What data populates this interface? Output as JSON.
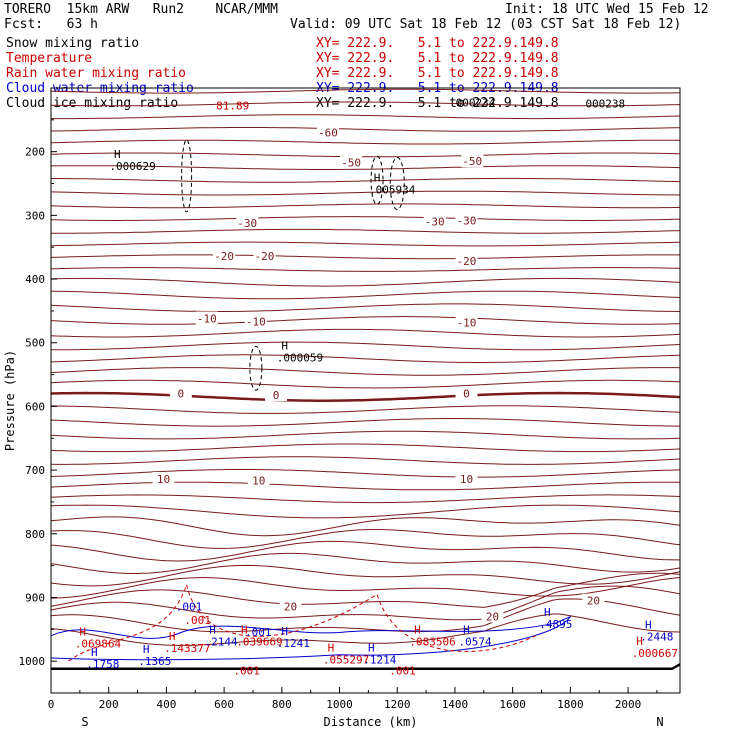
{
  "header": {
    "title_line": "TORERO  15km ARW   Run2    NCAR/MMM",
    "init": "Init: 18 UTC Wed 15 Feb 12",
    "fcst": "Fcst:   63 h",
    "valid": "Valid: 09 UTC Sat 18 Feb 12 (03 CST Sat 18 Feb 12)",
    "fields": [
      {
        "name": "Snow mixing ratio",
        "xy": "XY= 222.9.   5.1 to 222.9.149.8",
        "color": "#000000"
      },
      {
        "name": "Temperature",
        "xy": "XY= 222.9.   5.1 to 222.9.149.8",
        "color": "#cc0000"
      },
      {
        "name": "Rain water mixing ratio",
        "xy": "XY= 222.9.   5.1 to 222.9.149.8",
        "color": "#cc0000"
      },
      {
        "name": "Cloud water mixing ratio",
        "xy": "XY= 222.9.   5.1 to 222.9.149.8",
        "color": "#0000cc"
      },
      {
        "name": "Cloud ice mixing ratio",
        "xy": "XY= 222.9.   5.1 to 222.9.149.8",
        "color": "#000000"
      }
    ]
  },
  "chart_data": {
    "type": "cross-section contour",
    "xlabel": "Distance (km)",
    "ylabel": "Pressure (hPa)",
    "x_ticks": [
      0,
      200,
      400,
      600,
      800,
      1000,
      1200,
      1400,
      1600,
      1800,
      2000
    ],
    "y_ticks": [
      200,
      300,
      400,
      500,
      600,
      700,
      800,
      900,
      1000
    ],
    "xlim": [
      0,
      2180
    ],
    "ylim": [
      1050,
      100
    ],
    "left_end_label": "S",
    "right_end_label": "N",
    "temperature_isotherms": [
      {
        "value": -60,
        "labels": [
          {
            "x": 960,
            "p": 170,
            "text": "-60"
          }
        ]
      },
      {
        "value": -50,
        "labels": [
          {
            "x": 1040,
            "p": 217,
            "text": "-50"
          },
          {
            "x": 1460,
            "p": 215,
            "text": "-50"
          }
        ]
      },
      {
        "value": -30,
        "labels": [
          {
            "x": 680,
            "p": 312,
            "text": "-30"
          },
          {
            "x": 1330,
            "p": 310,
            "text": "-30"
          },
          {
            "x": 1440,
            "p": 308,
            "text": "-30"
          }
        ]
      },
      {
        "value": -20,
        "labels": [
          {
            "x": 600,
            "p": 364,
            "text": "-20"
          },
          {
            "x": 740,
            "p": 364,
            "text": "-20"
          },
          {
            "x": 1440,
            "p": 372,
            "text": "-20"
          }
        ]
      },
      {
        "value": -10,
        "labels": [
          {
            "x": 540,
            "p": 462,
            "text": "-10"
          },
          {
            "x": 710,
            "p": 467,
            "text": "-10"
          },
          {
            "x": 1440,
            "p": 468,
            "text": "-10"
          }
        ]
      },
      {
        "value": 0,
        "labels": [
          {
            "x": 450,
            "p": 580,
            "text": "0"
          },
          {
            "x": 780,
            "p": 582,
            "text": "0"
          },
          {
            "x": 1440,
            "p": 580,
            "text": "0"
          }
        ]
      },
      {
        "value": 10,
        "labels": [
          {
            "x": 390,
            "p": 714,
            "text": "10"
          },
          {
            "x": 720,
            "p": 716,
            "text": "10"
          },
          {
            "x": 1440,
            "p": 714,
            "text": "10"
          }
        ]
      },
      {
        "value": 20,
        "labels": [
          {
            "x": 830,
            "p": 914,
            "text": "20"
          },
          {
            "x": 1530,
            "p": 930,
            "text": "20"
          },
          {
            "x": 1880,
            "p": 905,
            "text": "20"
          }
        ]
      }
    ],
    "maxima": [
      {
        "x": 230,
        "p": 213,
        "mark": "H",
        "value": ".000629",
        "color": "#000000"
      },
      {
        "x": 1130,
        "p": 250,
        "mark": "H",
        "value": ".005934",
        "color": "#000000"
      },
      {
        "x": 810,
        "p": 514,
        "mark": "H",
        "value": ".000059",
        "color": "#000000"
      },
      {
        "x": 600,
        "p": 118,
        "mark": "",
        "value": "81.89",
        "color": "#cc0000"
      },
      {
        "x": 1430,
        "p": 113,
        "mark": "",
        "value": "000234",
        "color": "#000000"
      },
      {
        "x": 1880,
        "p": 115,
        "mark": "",
        "value": "000238",
        "color": "#000000"
      },
      {
        "x": 460,
        "p": 905,
        "mark": "",
        "value": ".001",
        "color": "#0000cc"
      },
      {
        "x": 490,
        "p": 926,
        "mark": "",
        "value": ".001",
        "color": "#cc0000"
      },
      {
        "x": 110,
        "p": 963,
        "mark": "H",
        "value": ".069864",
        "color": "#cc0000"
      },
      {
        "x": 150,
        "p": 995,
        "mark": "H",
        "value": ".1758",
        "color": "#0000cc"
      },
      {
        "x": 330,
        "p": 990,
        "mark": "H",
        "value": ".1365",
        "color": "#0000cc"
      },
      {
        "x": 420,
        "p": 970,
        "mark": "H",
        "value": ".143377",
        "color": "#cc0000"
      },
      {
        "x": 560,
        "p": 960,
        "mark": "H",
        "value": ".2144",
        "color": "#0000cc"
      },
      {
        "x": 670,
        "p": 960,
        "mark": "H",
        "value": ".039669",
        "color": "#cc0000"
      },
      {
        "x": 700,
        "p": 945,
        "mark": "",
        "value": ".001",
        "color": "#0000cc"
      },
      {
        "x": 660,
        "p": 1005,
        "mark": "",
        "value": ".001",
        "color": "#cc0000"
      },
      {
        "x": 810,
        "p": 962,
        "mark": "H",
        "value": ".1241",
        "color": "#0000cc"
      },
      {
        "x": 970,
        "p": 988,
        "mark": "H",
        "value": ".055297",
        "color": "#cc0000"
      },
      {
        "x": 1110,
        "p": 988,
        "mark": "H",
        "value": ".1214",
        "color": "#0000cc"
      },
      {
        "x": 1200,
        "p": 1005,
        "mark": "",
        "value": ".001",
        "color": "#cc0000"
      },
      {
        "x": 1270,
        "p": 960,
        "mark": "H",
        "value": ".083506",
        "color": "#cc0000"
      },
      {
        "x": 1440,
        "p": 960,
        "mark": "H",
        "value": ".0574",
        "color": "#0000cc"
      },
      {
        "x": 1720,
        "p": 932,
        "mark": "H",
        "value": ".4895",
        "color": "#0000cc"
      },
      {
        "x": 2070,
        "p": 952,
        "mark": "H",
        "value": ".2448",
        "color": "#0000cc"
      },
      {
        "x": 2040,
        "p": 978,
        "mark": "H",
        "value": ".000667",
        "color": "#cc0000"
      }
    ]
  }
}
